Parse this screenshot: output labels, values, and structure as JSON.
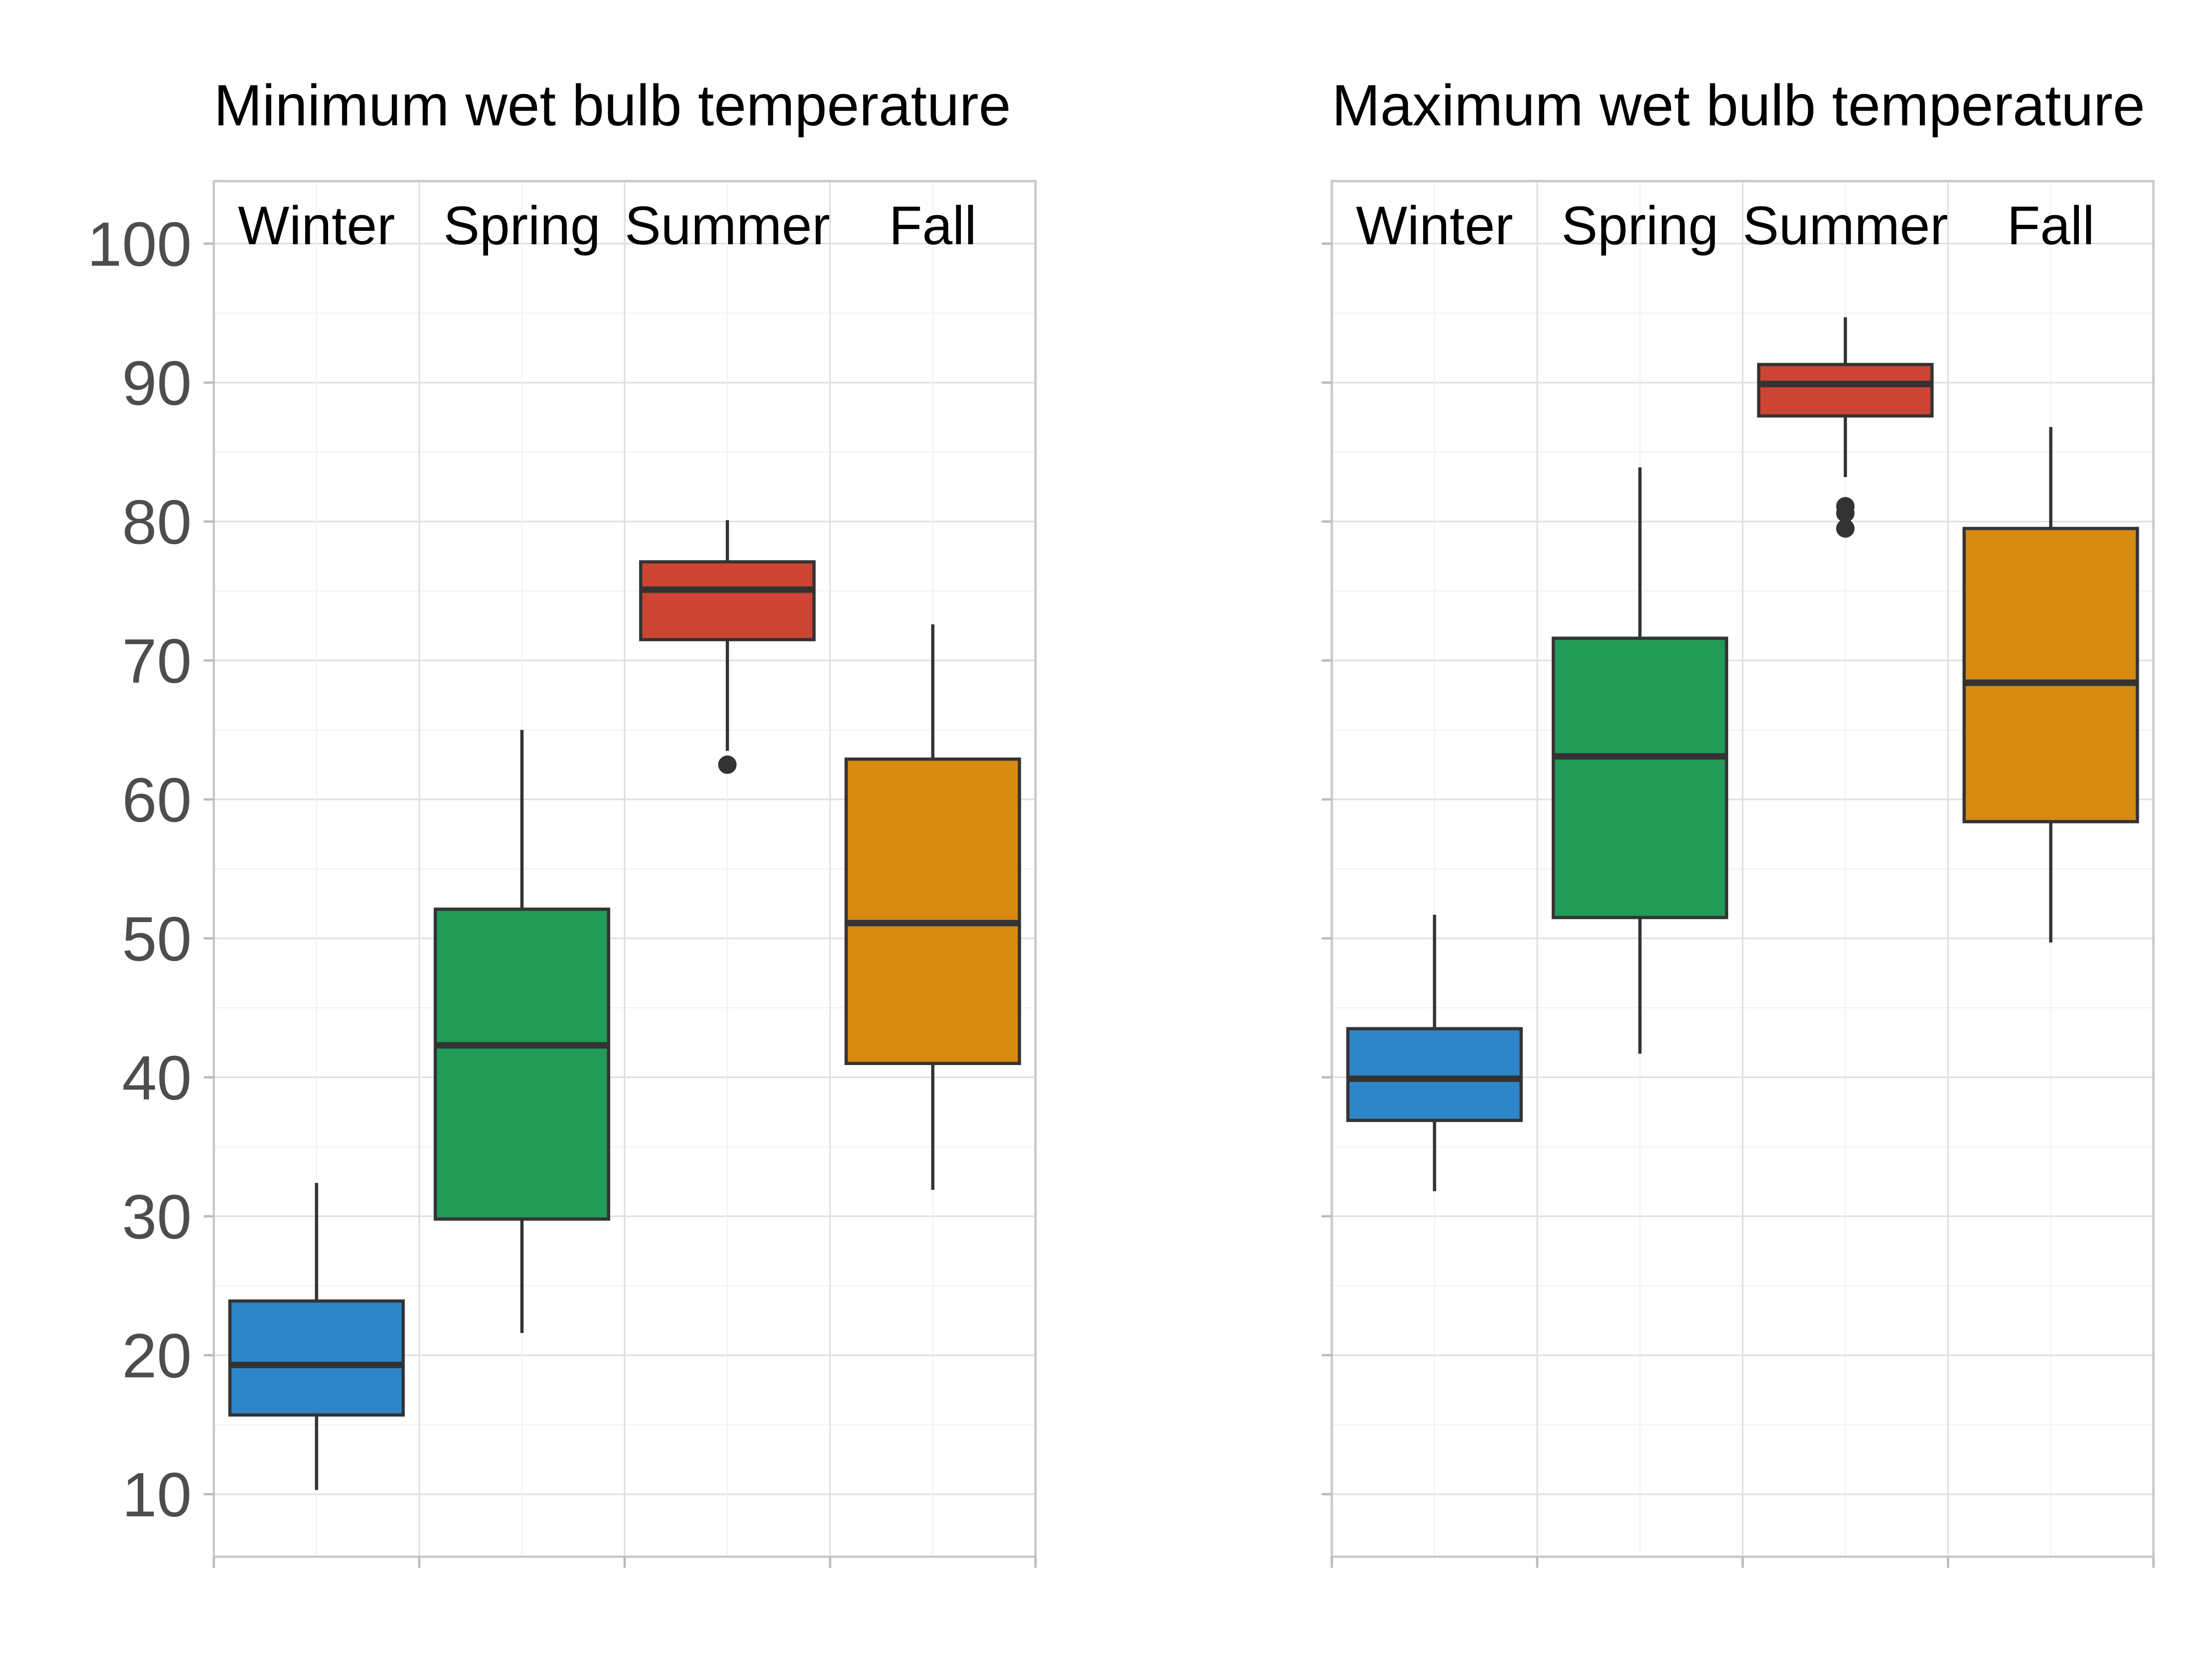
{
  "chart_data": [
    {
      "type": "box",
      "title": "Minimum wet bulb temperature",
      "categories": [
        "Winter",
        "Spring",
        "Summer",
        "Fall"
      ],
      "ylim": [
        5.5,
        104.5
      ],
      "yticks": [
        10,
        20,
        30,
        40,
        50,
        60,
        70,
        80,
        90,
        100
      ],
      "grid": true,
      "boxes": [
        {
          "category": "Winter",
          "whisker_low": 10.3,
          "q1": 15.7,
          "median": 19.3,
          "q3": 23.9,
          "whisker_high": 32.4,
          "outliers": [],
          "color": "#2e86c8"
        },
        {
          "category": "Spring",
          "whisker_low": 21.6,
          "q1": 29.8,
          "median": 42.3,
          "q3": 52.1,
          "whisker_high": 65.0,
          "outliers": [],
          "color": "#229a58"
        },
        {
          "category": "Summer",
          "whisker_low": 63.5,
          "q1": 71.5,
          "median": 75.1,
          "q3": 77.1,
          "whisker_high": 80.1,
          "outliers": [
            62.5
          ],
          "color": "#cc4434"
        },
        {
          "category": "Fall",
          "whisker_low": 31.9,
          "q1": 41.0,
          "median": 51.1,
          "q3": 62.9,
          "whisker_high": 72.6,
          "outliers": [],
          "color": "#d68a12"
        }
      ]
    },
    {
      "type": "box",
      "title": "Maximum wet bulb temperature",
      "categories": [
        "Winter",
        "Spring",
        "Summer",
        "Fall"
      ],
      "ylim": [
        5.5,
        104.5
      ],
      "yticks": [
        10,
        20,
        30,
        40,
        50,
        60,
        70,
        80,
        90,
        100
      ],
      "grid": true,
      "boxes": [
        {
          "category": "Winter",
          "whisker_low": 31.8,
          "q1": 36.9,
          "median": 39.9,
          "q3": 43.5,
          "whisker_high": 51.7,
          "outliers": [],
          "color": "#2e86c8"
        },
        {
          "category": "Spring",
          "whisker_low": 41.7,
          "q1": 51.5,
          "median": 63.1,
          "q3": 71.6,
          "whisker_high": 83.9,
          "outliers": [],
          "color": "#229a58"
        },
        {
          "category": "Summer",
          "whisker_low": 83.2,
          "q1": 87.6,
          "median": 89.9,
          "q3": 91.3,
          "whisker_high": 94.7,
          "outliers": [
            81.1,
            80.6,
            79.5
          ],
          "color": "#cc4434"
        },
        {
          "category": "Fall",
          "whisker_low": 49.7,
          "q1": 58.4,
          "median": 68.4,
          "q3": 79.5,
          "whisker_high": 86.8,
          "outliers": [],
          "color": "#d68a12"
        }
      ]
    }
  ]
}
